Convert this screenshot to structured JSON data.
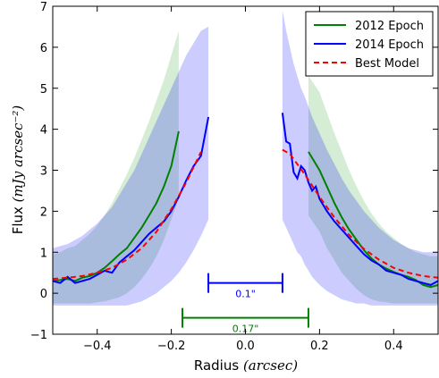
{
  "chart_data": {
    "type": "line",
    "xlabel_text": "Radius ",
    "xlabel_unit": "(arcsec)",
    "ylabel_text": "Flux ",
    "ylabel_unit": "(mJy arcsec⁻²)",
    "xlim": [
      -0.52,
      0.52
    ],
    "ylim": [
      -1,
      7
    ],
    "x_ticks": [
      -0.4,
      -0.2,
      0.0,
      0.2,
      0.4
    ],
    "x_tick_labels": [
      "−0.4",
      "−0.2",
      "0.0",
      "0.2",
      "0.4"
    ],
    "y_ticks": [
      -1,
      0,
      1,
      2,
      3,
      4,
      5,
      6,
      7
    ],
    "y_tick_labels": [
      "−1",
      "0",
      "1",
      "2",
      "3",
      "4",
      "5",
      "6",
      "7"
    ],
    "legend_position": "top-right",
    "grid": false,
    "series": [
      {
        "name": "2012 Epoch",
        "color": "#008000",
        "style": "solid",
        "band_color": "#2ca02c",
        "segments": [
          {
            "x": [
              -0.52,
              -0.5,
              -0.48,
              -0.46,
              -0.44,
              -0.42,
              -0.4,
              -0.38,
              -0.36,
              -0.34,
              -0.32,
              -0.3,
              -0.28,
              -0.26,
              -0.24,
              -0.22,
              -0.2,
              -0.18
            ],
            "y": [
              0.3,
              0.32,
              0.35,
              0.3,
              0.38,
              0.42,
              0.5,
              0.62,
              0.78,
              0.95,
              1.1,
              1.35,
              1.6,
              1.9,
              2.2,
              2.6,
              3.1,
              3.95
            ],
            "lower": [
              -0.25,
              -0.25,
              -0.25,
              -0.25,
              -0.25,
              -0.25,
              -0.22,
              -0.2,
              -0.15,
              -0.1,
              0.0,
              0.15,
              0.35,
              0.6,
              0.9,
              1.3,
              1.8,
              2.3
            ],
            "upper": [
              0.95,
              1.0,
              1.1,
              1.15,
              1.3,
              1.45,
              1.65,
              1.9,
              2.2,
              2.55,
              2.9,
              3.3,
              3.75,
              4.2,
              4.7,
              5.2,
              5.8,
              6.4
            ]
          },
          {
            "x": [
              0.17,
              0.2,
              0.22,
              0.24,
              0.26,
              0.28,
              0.3,
              0.32,
              0.34,
              0.36,
              0.38,
              0.4,
              0.42,
              0.44,
              0.46,
              0.48,
              0.5,
              0.52
            ],
            "y": [
              3.45,
              3.0,
              2.6,
              2.2,
              1.85,
              1.55,
              1.3,
              1.05,
              0.85,
              0.7,
              0.6,
              0.52,
              0.45,
              0.4,
              0.32,
              0.2,
              0.15,
              0.2
            ],
            "lower": [
              1.9,
              1.5,
              1.1,
              0.8,
              0.5,
              0.3,
              0.1,
              -0.05,
              -0.15,
              -0.2,
              -0.22,
              -0.25,
              -0.25,
              -0.25,
              -0.25,
              -0.25,
              -0.25,
              -0.25
            ],
            "upper": [
              5.3,
              4.9,
              4.4,
              3.9,
              3.45,
              3.0,
              2.6,
              2.25,
              1.95,
              1.7,
              1.5,
              1.35,
              1.2,
              1.1,
              1.0,
              0.95,
              0.9,
              0.9
            ]
          }
        ]
      },
      {
        "name": "2014 Epoch",
        "color": "#0000ff",
        "style": "solid",
        "band_color": "#0000ff",
        "segments": [
          {
            "x": [
              -0.52,
              -0.5,
              -0.48,
              -0.46,
              -0.44,
              -0.42,
              -0.4,
              -0.38,
              -0.36,
              -0.34,
              -0.32,
              -0.3,
              -0.28,
              -0.26,
              -0.24,
              -0.22,
              -0.2,
              -0.18,
              -0.16,
              -0.14,
              -0.12,
              -0.1
            ],
            "y": [
              0.3,
              0.25,
              0.4,
              0.25,
              0.3,
              0.35,
              0.45,
              0.55,
              0.5,
              0.75,
              0.9,
              1.05,
              1.25,
              1.45,
              1.6,
              1.75,
              2.0,
              2.35,
              2.75,
              3.1,
              3.35,
              4.3
            ],
            "lower": [
              -0.3,
              -0.3,
              -0.3,
              -0.3,
              -0.3,
              -0.3,
              -0.3,
              -0.3,
              -0.3,
              -0.3,
              -0.3,
              -0.25,
              -0.2,
              -0.1,
              0.0,
              0.15,
              0.3,
              0.5,
              0.75,
              1.05,
              1.4,
              1.8
            ],
            "upper": [
              1.1,
              1.15,
              1.2,
              1.3,
              1.4,
              1.55,
              1.7,
              1.9,
              2.1,
              2.4,
              2.7,
              3.0,
              3.4,
              3.8,
              4.2,
              4.6,
              5.0,
              5.4,
              5.8,
              6.1,
              6.4,
              6.5
            ]
          },
          {
            "x": [
              0.1,
              0.11,
              0.12,
              0.13,
              0.14,
              0.15,
              0.16,
              0.17,
              0.18,
              0.19,
              0.2,
              0.22,
              0.24,
              0.26,
              0.28,
              0.3,
              0.32,
              0.34,
              0.36,
              0.38,
              0.4,
              0.42,
              0.44,
              0.46,
              0.48,
              0.5,
              0.52
            ],
            "y": [
              4.4,
              3.7,
              3.65,
              2.95,
              2.8,
              3.1,
              3.0,
              2.7,
              2.5,
              2.6,
              2.3,
              2.0,
              1.75,
              1.55,
              1.35,
              1.15,
              0.95,
              0.8,
              0.7,
              0.55,
              0.5,
              0.45,
              0.35,
              0.3,
              0.25,
              0.2,
              0.3
            ],
            "lower": [
              1.8,
              1.6,
              1.4,
              1.2,
              1.0,
              0.9,
              0.7,
              0.55,
              0.4,
              0.3,
              0.2,
              0.05,
              -0.05,
              -0.15,
              -0.2,
              -0.25,
              -0.25,
              -0.3,
              -0.3,
              -0.3,
              -0.3,
              -0.3,
              -0.3,
              -0.3,
              -0.3,
              -0.3,
              -0.3
            ],
            "upper": [
              6.9,
              6.4,
              6.0,
              5.6,
              5.3,
              5.0,
              4.8,
              4.55,
              4.3,
              4.1,
              3.9,
              3.5,
              3.15,
              2.8,
              2.5,
              2.25,
              2.0,
              1.8,
              1.6,
              1.45,
              1.3,
              1.2,
              1.1,
              1.05,
              1.0,
              1.0,
              1.0
            ]
          }
        ]
      },
      {
        "name": "Best Model",
        "color": "#ff0000",
        "style": "dashed",
        "segments": [
          {
            "x": [
              -0.52,
              -0.48,
              -0.44,
              -0.4,
              -0.36,
              -0.32,
              -0.28,
              -0.24,
              -0.2,
              -0.16,
              -0.12
            ],
            "y": [
              0.35,
              0.38,
              0.42,
              0.5,
              0.62,
              0.82,
              1.1,
              1.5,
              2.05,
              2.7,
              3.45
            ]
          },
          {
            "x": [
              0.1,
              0.12,
              0.16,
              0.2,
              0.24,
              0.28,
              0.32,
              0.36,
              0.4,
              0.44,
              0.48,
              0.52
            ],
            "y": [
              3.5,
              3.4,
              2.9,
              2.35,
              1.85,
              1.42,
              1.08,
              0.82,
              0.62,
              0.5,
              0.42,
              0.38
            ]
          }
        ]
      }
    ],
    "annotations": [
      {
        "text": "0.1\"",
        "x_start": -0.1,
        "x_end": 0.1,
        "y": 0.25,
        "color": "#0000ff"
      },
      {
        "text": "0.17\"",
        "x_start": -0.17,
        "x_end": 0.17,
        "y": -0.6,
        "color": "#008000"
      }
    ]
  }
}
